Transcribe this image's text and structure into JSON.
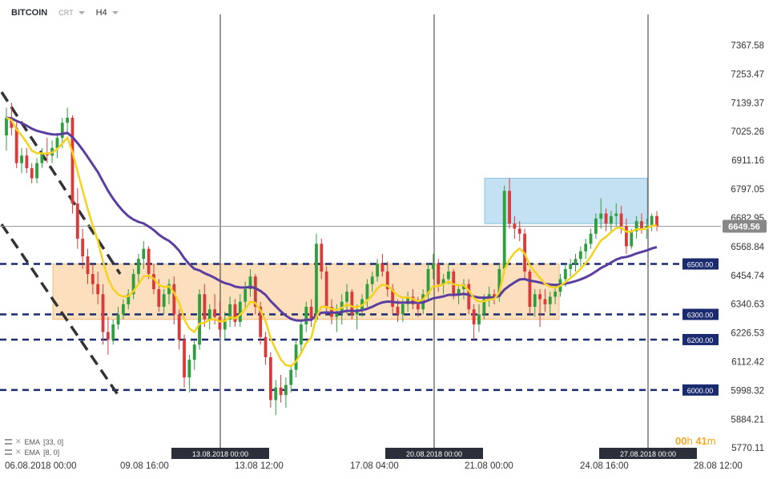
{
  "header": {
    "symbol": "BITCOIN",
    "type": "CRT",
    "timeframe": "H4"
  },
  "indicators": [
    {
      "label": "EMA",
      "params": "[33, 0]",
      "color": "#5b3fa0"
    },
    {
      "label": "EMA",
      "params": "[8, 0]",
      "color": "#f5d21e"
    }
  ],
  "timer": {
    "hours": "00",
    "h": "h",
    "minutes": "41",
    "m": "m"
  },
  "colors": {
    "up": "#2e9e3e",
    "down": "#d93a3a",
    "ema33": "#5b3fa0",
    "ema8": "#f5d21e",
    "level": "#1a2a6e",
    "trend": "#333333",
    "zone_orange": "#fcd9b0",
    "zone_blue": "#b9dcf0"
  },
  "chart_data": {
    "type": "candlestick",
    "symbol": "BITCOIN",
    "timeframe": "H4",
    "ylim": [
      5720,
      7420
    ],
    "price_ticks": [
      "7367.58",
      "7253.47",
      "7139.37",
      "7025.26",
      "6911.16",
      "6797.05",
      "6682.95",
      "6568.84",
      "6454.74",
      "6340.63",
      "6226.53",
      "6112.42",
      "5998.32",
      "5884.21",
      "5770.11"
    ],
    "current_price": "6649.56",
    "x_labels": [
      "06.08.2018  00:00",
      "09.08  16:00",
      "13.08  12:00",
      "17.08  04:00",
      "21.08  00:00",
      "24.08  16:00",
      "28.08  12:00"
    ],
    "vlines": [
      "13.08.2018 00:00",
      "20.08.2018 00:00",
      "27.08.2018 00:00"
    ],
    "levels": [
      "6500.00",
      "6300.00",
      "6200.00",
      "6000.00"
    ],
    "zones": [
      {
        "name": "support-zone",
        "from": 6280,
        "to": 6500
      },
      {
        "name": "resistance-zone",
        "from": 6660,
        "to": 6840
      }
    ],
    "candles": [
      [
        7010,
        7120,
        6950,
        7080
      ],
      [
        7080,
        7140,
        7010,
        7040
      ],
      [
        7040,
        7070,
        6880,
        6900
      ],
      [
        6900,
        6960,
        6860,
        6930
      ],
      [
        6930,
        6960,
        6860,
        6880
      ],
      [
        6880,
        6900,
        6820,
        6840
      ],
      [
        6840,
        6920,
        6820,
        6900
      ],
      [
        6900,
        6960,
        6880,
        6940
      ],
      [
        6940,
        7000,
        6900,
        6930
      ],
      [
        6930,
        6990,
        6900,
        6960
      ],
      [
        6960,
        7020,
        6920,
        7000
      ],
      [
        7000,
        7080,
        6960,
        7060
      ],
      [
        7060,
        7120,
        7020,
        7080
      ],
      [
        7080,
        7090,
        6700,
        6740
      ],
      [
        6740,
        6800,
        6560,
        6600
      ],
      [
        6600,
        6640,
        6480,
        6530
      ],
      [
        6530,
        6560,
        6420,
        6460
      ],
      [
        6460,
        6500,
        6380,
        6420
      ],
      [
        6420,
        6470,
        6340,
        6380
      ],
      [
        6380,
        6420,
        6180,
        6230
      ],
      [
        6230,
        6290,
        6140,
        6200
      ],
      [
        6200,
        6280,
        6180,
        6260
      ],
      [
        6260,
        6330,
        6240,
        6300
      ],
      [
        6300,
        6360,
        6280,
        6340
      ],
      [
        6340,
        6400,
        6320,
        6380
      ],
      [
        6380,
        6480,
        6360,
        6460
      ],
      [
        6460,
        6540,
        6420,
        6520
      ],
      [
        6520,
        6590,
        6480,
        6560
      ],
      [
        6560,
        6570,
        6440,
        6460
      ],
      [
        6460,
        6500,
        6380,
        6400
      ],
      [
        6400,
        6440,
        6310,
        6330
      ],
      [
        6330,
        6400,
        6300,
        6380
      ],
      [
        6380,
        6440,
        6340,
        6420
      ],
      [
        6420,
        6450,
        6260,
        6300
      ],
      [
        6300,
        6320,
        6160,
        6200
      ],
      [
        6200,
        6220,
        6010,
        6050
      ],
      [
        6050,
        6140,
        5990,
        6120
      ],
      [
        6120,
        6200,
        6080,
        6180
      ],
      [
        6180,
        6400,
        6160,
        6380
      ],
      [
        6380,
        6420,
        6250,
        6280
      ],
      [
        6280,
        6340,
        6240,
        6320
      ],
      [
        6320,
        6380,
        6260,
        6290
      ],
      [
        6290,
        6350,
        6210,
        6240
      ],
      [
        6240,
        6310,
        6200,
        6280
      ],
      [
        6280,
        6370,
        6250,
        6340
      ],
      [
        6340,
        6360,
        6250,
        6270
      ],
      [
        6270,
        6380,
        6250,
        6350
      ],
      [
        6350,
        6430,
        6320,
        6400
      ],
      [
        6400,
        6480,
        6370,
        6450
      ],
      [
        6450,
        6460,
        6300,
        6330
      ],
      [
        6330,
        6350,
        6180,
        6210
      ],
      [
        6210,
        6230,
        6100,
        6130
      ],
      [
        6130,
        6150,
        5930,
        5960
      ],
      [
        5960,
        6040,
        5900,
        6010
      ],
      [
        6010,
        6060,
        5950,
        5980
      ],
      [
        5980,
        6050,
        5930,
        6020
      ],
      [
        6020,
        6100,
        5990,
        6080
      ],
      [
        6080,
        6200,
        6050,
        6180
      ],
      [
        6180,
        6280,
        6150,
        6260
      ],
      [
        6260,
        6350,
        6230,
        6330
      ],
      [
        6330,
        6360,
        6250,
        6280
      ],
      [
        6280,
        6620,
        6270,
        6580
      ],
      [
        6580,
        6600,
        6440,
        6470
      ],
      [
        6470,
        6490,
        6300,
        6330
      ],
      [
        6330,
        6360,
        6260,
        6290
      ],
      [
        6290,
        6340,
        6230,
        6310
      ],
      [
        6310,
        6380,
        6260,
        6350
      ],
      [
        6350,
        6420,
        6300,
        6390
      ],
      [
        6390,
        6400,
        6280,
        6300
      ],
      [
        6300,
        6340,
        6240,
        6320
      ],
      [
        6320,
        6380,
        6290,
        6360
      ],
      [
        6360,
        6440,
        6330,
        6420
      ],
      [
        6420,
        6470,
        6390,
        6450
      ],
      [
        6450,
        6520,
        6430,
        6500
      ],
      [
        6500,
        6540,
        6450,
        6470
      ],
      [
        6470,
        6510,
        6370,
        6400
      ],
      [
        6400,
        6420,
        6300,
        6330
      ],
      [
        6330,
        6360,
        6270,
        6300
      ],
      [
        6300,
        6360,
        6270,
        6340
      ],
      [
        6340,
        6390,
        6310,
        6370
      ],
      [
        6370,
        6400,
        6320,
        6340
      ],
      [
        6340,
        6370,
        6290,
        6320
      ],
      [
        6320,
        6400,
        6300,
        6380
      ],
      [
        6380,
        6500,
        6360,
        6480
      ],
      [
        6480,
        6540,
        6440,
        6500
      ],
      [
        6500,
        6520,
        6390,
        6420
      ],
      [
        6420,
        6460,
        6380,
        6440
      ],
      [
        6440,
        6500,
        6420,
        6470
      ],
      [
        6470,
        6480,
        6360,
        6380
      ],
      [
        6380,
        6420,
        6340,
        6400
      ],
      [
        6400,
        6440,
        6360,
        6420
      ],
      [
        6420,
        6440,
        6300,
        6320
      ],
      [
        6320,
        6340,
        6200,
        6260
      ],
      [
        6260,
        6340,
        6230,
        6300
      ],
      [
        6300,
        6380,
        6280,
        6360
      ],
      [
        6360,
        6410,
        6330,
        6380
      ],
      [
        6380,
        6400,
        6340,
        6370
      ],
      [
        6370,
        6500,
        6350,
        6480
      ],
      [
        6480,
        6810,
        6460,
        6790
      ],
      [
        6790,
        6840,
        6640,
        6660
      ],
      [
        6660,
        6690,
        6600,
        6640
      ],
      [
        6640,
        6670,
        6590,
        6620
      ],
      [
        6620,
        6640,
        6440,
        6470
      ],
      [
        6470,
        6480,
        6300,
        6330
      ],
      [
        6330,
        6400,
        6290,
        6380
      ],
      [
        6380,
        6400,
        6250,
        6360
      ],
      [
        6360,
        6400,
        6310,
        6340
      ],
      [
        6340,
        6390,
        6300,
        6370
      ],
      [
        6370,
        6420,
        6340,
        6390
      ],
      [
        6390,
        6460,
        6370,
        6440
      ],
      [
        6440,
        6500,
        6410,
        6480
      ],
      [
        6480,
        6520,
        6450,
        6500
      ],
      [
        6500,
        6540,
        6470,
        6520
      ],
      [
        6520,
        6570,
        6490,
        6550
      ],
      [
        6550,
        6600,
        6520,
        6580
      ],
      [
        6580,
        6640,
        6560,
        6620
      ],
      [
        6620,
        6700,
        6600,
        6680
      ],
      [
        6680,
        6760,
        6640,
        6700
      ],
      [
        6700,
        6720,
        6630,
        6660
      ],
      [
        6660,
        6710,
        6630,
        6690
      ],
      [
        6690,
        6740,
        6650,
        6700
      ],
      [
        6700,
        6730,
        6620,
        6650
      ],
      [
        6650,
        6680,
        6540,
        6570
      ],
      [
        6570,
        6640,
        6560,
        6630
      ],
      [
        6630,
        6690,
        6600,
        6670
      ],
      [
        6670,
        6700,
        6620,
        6640
      ],
      [
        6640,
        6680,
        6600,
        6650
      ],
      [
        6650,
        6700,
        6630,
        6690
      ],
      [
        6690,
        6710,
        6630,
        6650
      ]
    ]
  }
}
